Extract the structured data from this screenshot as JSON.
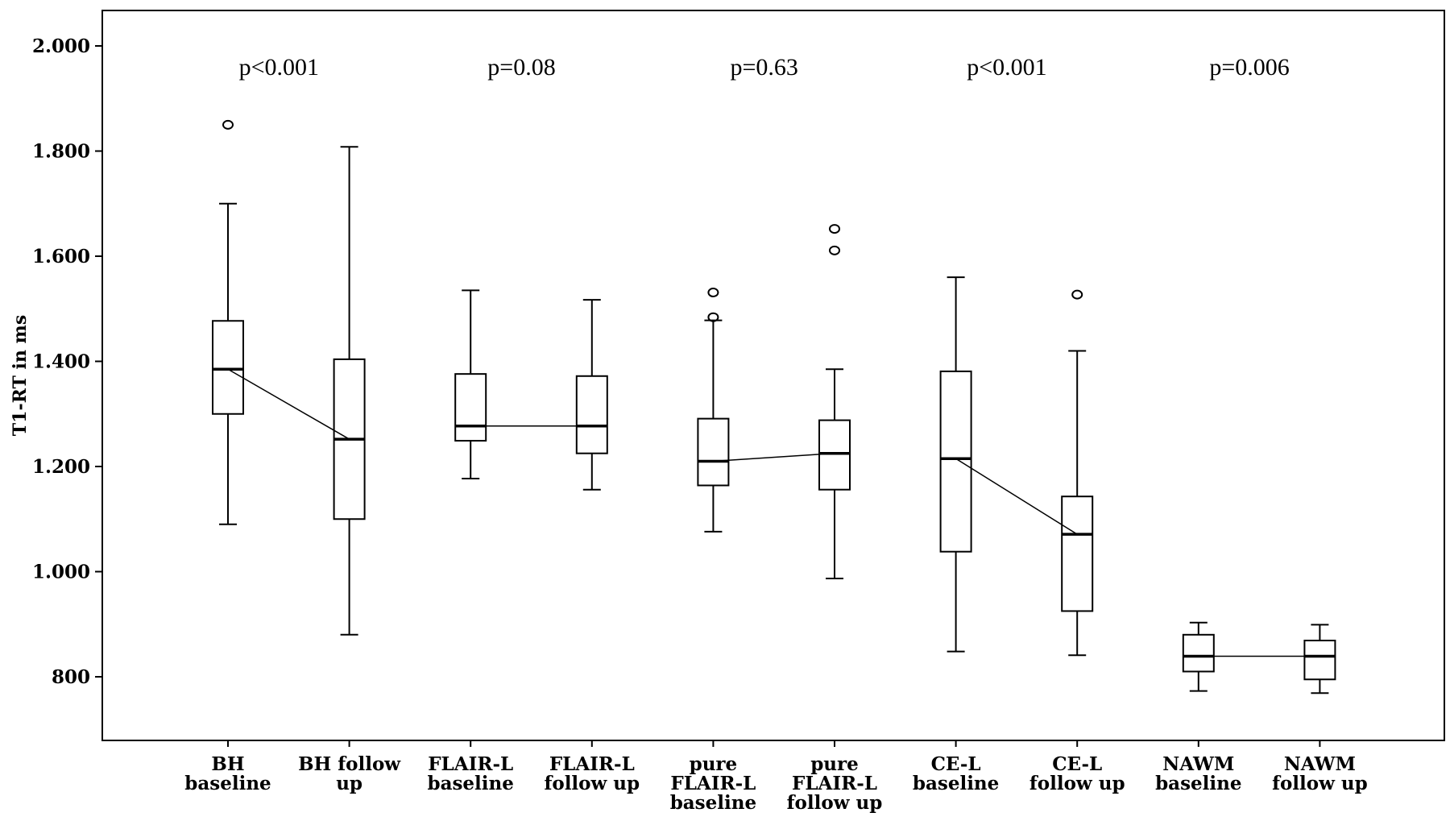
{
  "chart_data": {
    "type": "boxplot",
    "ylabel": "T1-RT in ms",
    "ylim": [
      680,
      2090
    ],
    "yticks": [
      800,
      1000,
      1200,
      1400,
      1600,
      1800,
      2000
    ],
    "ytick_labels": [
      "800",
      "1.000",
      "1.200",
      "1.400",
      "1.600",
      "1.800",
      "2.000"
    ],
    "categories": [
      [
        "BH",
        "baseline"
      ],
      [
        "BH follow",
        "up"
      ],
      [
        "FLAIR-L",
        "baseline"
      ],
      [
        "FLAIR-L",
        "follow up"
      ],
      [
        "pure",
        "FLAIR-L",
        "baseline"
      ],
      [
        "pure",
        "FLAIR-L",
        "follow up"
      ],
      [
        "CE-L",
        "baseline"
      ],
      [
        "CE-L",
        "follow up"
      ],
      [
        "NAWM",
        "baseline"
      ],
      [
        "NAWM",
        "follow up"
      ]
    ],
    "boxes": [
      {
        "min": 1090,
        "q1": 1300,
        "median": 1385,
        "q3": 1477,
        "max": 1700,
        "outliers": [
          1850
        ]
      },
      {
        "min": 880,
        "q1": 1100,
        "median": 1252,
        "q3": 1404,
        "max": 1808,
        "outliers": []
      },
      {
        "min": 1177,
        "q1": 1249,
        "median": 1277,
        "q3": 1376,
        "max": 1535,
        "outliers": []
      },
      {
        "min": 1156,
        "q1": 1225,
        "median": 1277,
        "q3": 1372,
        "max": 1517,
        "outliers": []
      },
      {
        "min": 1076,
        "q1": 1164,
        "median": 1210,
        "q3": 1291,
        "max": 1478,
        "outliers": [
          1484,
          1531
        ]
      },
      {
        "min": 987,
        "q1": 1156,
        "median": 1225,
        "q3": 1288,
        "max": 1385,
        "outliers": [
          1611,
          1652
        ]
      },
      {
        "min": 848,
        "q1": 1038,
        "median": 1215,
        "q3": 1381,
        "max": 1560,
        "outliers": []
      },
      {
        "min": 841,
        "q1": 925,
        "median": 1071,
        "q3": 1143,
        "max": 1420,
        "outliers": [
          1527
        ]
      },
      {
        "min": 773,
        "q1": 810,
        "median": 839,
        "q3": 880,
        "max": 903,
        "outliers": []
      },
      {
        "min": 769,
        "q1": 795,
        "median": 839,
        "q3": 869,
        "max": 899,
        "outliers": []
      }
    ],
    "pvalues": [
      "p<0.001",
      "p=0.08",
      "p=0.63",
      "p<0.001",
      "p=0.006"
    ],
    "pairs": [
      [
        0,
        1
      ],
      [
        2,
        3
      ],
      [
        4,
        5
      ],
      [
        6,
        7
      ],
      [
        8,
        9
      ]
    ]
  }
}
